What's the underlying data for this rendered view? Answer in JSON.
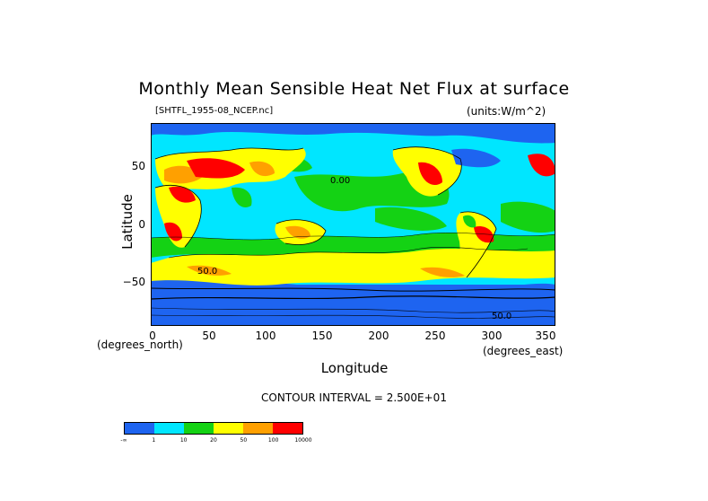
{
  "title": "Monthly Mean Sensible Heat Net Flux at surface",
  "file_label": "[SHTFL_1955-08_NCEP.nc]",
  "units_label": "(units:W/m^2)",
  "axes": {
    "ylabel": "Latitude",
    "xlabel": "Longitude",
    "y_ticks": [
      "50",
      "0",
      "−50"
    ],
    "x_ticks": [
      "0",
      "50",
      "100",
      "150",
      "200",
      "250",
      "300",
      "350"
    ],
    "y_unit": "(degrees_north)",
    "x_unit": "(degrees_east)",
    "xlim": [
      0,
      357.5
    ],
    "ylim": [
      -90,
      90
    ]
  },
  "contour_interval": "CONTOUR INTERVAL = 2.500E+01",
  "contour_labels": [
    "0.00",
    "50.0",
    "50.0"
  ],
  "legend": {
    "colors": [
      "#1e64f0",
      "#00e6ff",
      "#14d214",
      "#ffff00",
      "#ffa000",
      "#ff0000"
    ],
    "tick_labels": [
      "-∞",
      "1",
      "10",
      "20",
      "50",
      "100",
      "10000"
    ]
  },
  "colors": {
    "ocean_deep": "#1e64f0",
    "ocean_mid": "#00e6ff",
    "green": "#14d214",
    "yellow": "#ffff00",
    "orange": "#ffa000",
    "red": "#ff0000"
  }
}
